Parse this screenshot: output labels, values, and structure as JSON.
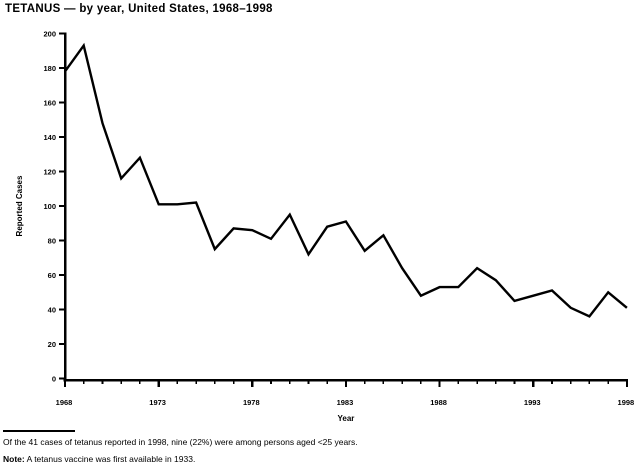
{
  "chart_data": {
    "type": "line",
    "title": "TETANUS — by year, United States, 1968–1998",
    "xlabel": "Year",
    "ylabel": "Reported Cases",
    "x": [
      1968,
      1969,
      1970,
      1971,
      1972,
      1973,
      1974,
      1975,
      1976,
      1977,
      1978,
      1979,
      1980,
      1981,
      1982,
      1983,
      1984,
      1985,
      1986,
      1987,
      1988,
      1989,
      1990,
      1991,
      1992,
      1993,
      1994,
      1995,
      1996,
      1997,
      1998
    ],
    "values": [
      178,
      193,
      148,
      116,
      128,
      101,
      101,
      102,
      75,
      87,
      86,
      81,
      95,
      72,
      88,
      91,
      74,
      83,
      64,
      48,
      53,
      53,
      64,
      57,
      45,
      48,
      51,
      41,
      36,
      50,
      41
    ],
    "ylim": [
      0,
      200
    ],
    "ytick_interval": 20,
    "xtick_labels": [
      "1968",
      "1973",
      "1978",
      "1983",
      "1988",
      "1993",
      "1998"
    ],
    "grid": "off",
    "legend": "none",
    "line_color": "#000000",
    "background_color": "#ffffff"
  },
  "footnotes": {
    "line1": "Of the 41 cases of tetanus reported in 1998, nine (22%) were among persons aged <25 years.",
    "note_label": "Note:",
    "note_text": " A tetanus vaccine was first available in 1933."
  }
}
